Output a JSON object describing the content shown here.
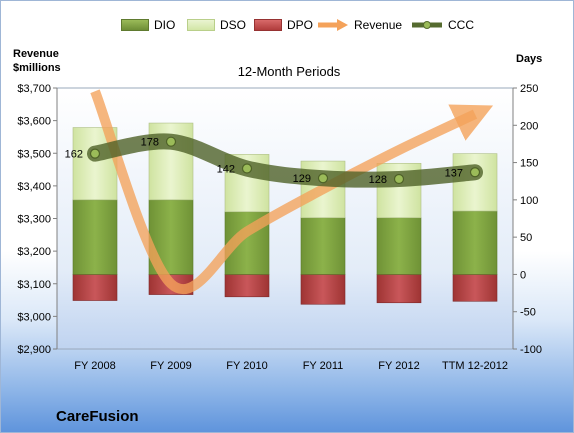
{
  "chart_data": {
    "type": "bar",
    "title": "12-Month Periods",
    "company": "CareFusion",
    "ylabel_left_line1": "Revenue",
    "ylabel_left_line2": "$millions",
    "ylabel_right": "Days",
    "categories": [
      "FY 2008",
      "FY 2009",
      "FY 2010",
      "FY 2011",
      "FY 2012",
      "TTM 12-2012"
    ],
    "series": [
      {
        "name": "DIO",
        "type": "stacked-bar",
        "axis": "right",
        "values": [
          100,
          100,
          84,
          76,
          76,
          85
        ],
        "color": "#7fa240"
      },
      {
        "name": "DSO",
        "type": "stacked-bar",
        "axis": "right",
        "values": [
          97,
          103,
          77,
          76,
          73,
          77
        ],
        "color": "#d7eaae"
      },
      {
        "name": "DPO",
        "type": "negative-bar",
        "axis": "right",
        "values": [
          35,
          27,
          30,
          40,
          38,
          36
        ],
        "color": "#c0504d"
      },
      {
        "name": "Revenue",
        "type": "line",
        "axis": "left",
        "values": [
          3690,
          3100,
          3260,
          3390,
          3510,
          3620
        ],
        "color": "#f4a25a"
      },
      {
        "name": "CCC",
        "type": "line",
        "axis": "right",
        "values": [
          162,
          178,
          142,
          129,
          128,
          137
        ],
        "labels": [
          "162",
          "178",
          "142",
          "129",
          "128",
          "137"
        ],
        "color": "#556b2f"
      }
    ],
    "ylim_left": [
      2900,
      3700
    ],
    "yticks_left": [
      2900,
      3000,
      3100,
      3200,
      3300,
      3400,
      3500,
      3600,
      3700
    ],
    "ytick_labels_left": [
      "$2,900",
      "$3,000",
      "$3,100",
      "$3,200",
      "$3,300",
      "$3,400",
      "$3,500",
      "$3,600",
      "$3,700"
    ],
    "ylim_right": [
      -100,
      250
    ],
    "yticks_right": [
      -100,
      -50,
      0,
      50,
      100,
      150,
      200,
      250
    ],
    "ytick_labels_right": [
      "-100",
      "-50",
      "0",
      "50",
      "100",
      "150",
      "200",
      "250"
    ],
    "grid": false,
    "legend_position": "top"
  }
}
